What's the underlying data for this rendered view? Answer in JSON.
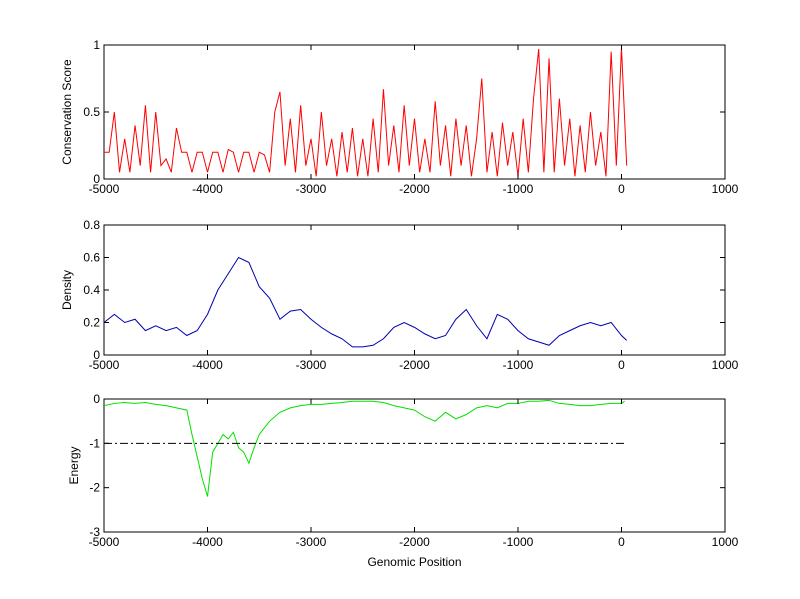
{
  "chart_data": [
    {
      "type": "line",
      "ylabel": "Conservation Score",
      "xlim": [
        -5000,
        1000
      ],
      "xticks": [
        -5000,
        -4000,
        -3000,
        -2000,
        -1000,
        0,
        1000
      ],
      "ylim": [
        0,
        1
      ],
      "yticks": [
        0,
        0.5,
        1
      ],
      "series": [
        {
          "color": "#ff0000",
          "x": [
            -5000,
            -4950,
            -4900,
            -4850,
            -4800,
            -4750,
            -4700,
            -4650,
            -4600,
            -4550,
            -4500,
            -4450,
            -4400,
            -4350,
            -4300,
            -4250,
            -4200,
            -4150,
            -4100,
            -4050,
            -4000,
            -3950,
            -3900,
            -3850,
            -3800,
            -3750,
            -3700,
            -3650,
            -3600,
            -3550,
            -3500,
            -3450,
            -3400,
            -3350,
            -3300,
            -3250,
            -3200,
            -3150,
            -3100,
            -3050,
            -3000,
            -2950,
            -2900,
            -2850,
            -2800,
            -2750,
            -2700,
            -2650,
            -2600,
            -2550,
            -2500,
            -2450,
            -2400,
            -2350,
            -2300,
            -2250,
            -2200,
            -2150,
            -2100,
            -2050,
            -2000,
            -1950,
            -1900,
            -1850,
            -1800,
            -1750,
            -1700,
            -1650,
            -1600,
            -1550,
            -1500,
            -1450,
            -1400,
            -1350,
            -1300,
            -1250,
            -1200,
            -1150,
            -1100,
            -1050,
            -1000,
            -950,
            -900,
            -850,
            -800,
            -750,
            -700,
            -650,
            -600,
            -550,
            -500,
            -450,
            -400,
            -350,
            -300,
            -250,
            -200,
            -150,
            -100,
            -50,
            0,
            50
          ],
          "values": [
            0.2,
            0.2,
            0.5,
            0.05,
            0.3,
            0.05,
            0.4,
            0.1,
            0.55,
            0.05,
            0.5,
            0.1,
            0.15,
            0.05,
            0.38,
            0.2,
            0.2,
            0.05,
            0.2,
            0.2,
            0.05,
            0.2,
            0.2,
            0.05,
            0.22,
            0.2,
            0.05,
            0.2,
            0.2,
            0.05,
            0.2,
            0.18,
            0.05,
            0.5,
            0.65,
            0.1,
            0.45,
            0.05,
            0.55,
            0.1,
            0.3,
            0.02,
            0.5,
            0.1,
            0.3,
            0.02,
            0.35,
            0.05,
            0.38,
            0.02,
            0.3,
            0.02,
            0.45,
            0.05,
            0.67,
            0.1,
            0.4,
            0.05,
            0.55,
            0.1,
            0.45,
            0.05,
            0.3,
            0.05,
            0.58,
            0.1,
            0.4,
            0.02,
            0.45,
            0.1,
            0.4,
            0.02,
            0.3,
            0.75,
            0.05,
            0.35,
            0.02,
            0.42,
            0.1,
            0.35,
            0.02,
            0.45,
            0.05,
            0.6,
            0.97,
            0.05,
            0.9,
            0.05,
            0.6,
            0.1,
            0.45,
            0.02,
            0.4,
            0.05,
            0.5,
            0.1,
            0.35,
            0.02,
            0.95,
            0.1,
            0.98,
            0.1
          ]
        }
      ]
    },
    {
      "type": "line",
      "ylabel": "Density",
      "xlim": [
        -5000,
        1000
      ],
      "xticks": [
        -5000,
        -4000,
        -3000,
        -2000,
        -1000,
        0,
        1000
      ],
      "ylim": [
        0,
        0.8
      ],
      "yticks": [
        0,
        0.2,
        0.4,
        0.6,
        0.8
      ],
      "series": [
        {
          "color": "#0000b0",
          "x": [
            -5000,
            -4900,
            -4800,
            -4700,
            -4600,
            -4500,
            -4400,
            -4300,
            -4200,
            -4100,
            -4000,
            -3900,
            -3800,
            -3700,
            -3600,
            -3500,
            -3400,
            -3300,
            -3200,
            -3100,
            -3000,
            -2900,
            -2800,
            -2700,
            -2600,
            -2500,
            -2400,
            -2300,
            -2200,
            -2100,
            -2000,
            -1900,
            -1800,
            -1700,
            -1600,
            -1500,
            -1400,
            -1300,
            -1200,
            -1100,
            -1000,
            -900,
            -800,
            -700,
            -600,
            -500,
            -400,
            -300,
            -200,
            -100,
            0,
            50
          ],
          "values": [
            0.2,
            0.25,
            0.2,
            0.22,
            0.15,
            0.18,
            0.15,
            0.17,
            0.12,
            0.15,
            0.25,
            0.4,
            0.5,
            0.6,
            0.57,
            0.42,
            0.35,
            0.22,
            0.27,
            0.28,
            0.22,
            0.17,
            0.13,
            0.1,
            0.05,
            0.05,
            0.06,
            0.1,
            0.17,
            0.2,
            0.17,
            0.13,
            0.1,
            0.12,
            0.22,
            0.28,
            0.18,
            0.1,
            0.25,
            0.22,
            0.15,
            0.1,
            0.08,
            0.06,
            0.12,
            0.15,
            0.18,
            0.2,
            0.18,
            0.2,
            0.12,
            0.09
          ]
        }
      ]
    },
    {
      "type": "line",
      "ylabel": "Energy",
      "xlabel": "Genomic Position",
      "xlim": [
        -5000,
        1000
      ],
      "xticks": [
        -5000,
        -4000,
        -3000,
        -2000,
        -1000,
        0,
        1000
      ],
      "ylim": [
        -3,
        0
      ],
      "yticks": [
        -3,
        -2,
        -1,
        0
      ],
      "series": [
        {
          "color": "#00e000",
          "x": [
            -5000,
            -4900,
            -4800,
            -4700,
            -4600,
            -4500,
            -4400,
            -4300,
            -4200,
            -4150,
            -4100,
            -4050,
            -4000,
            -3950,
            -3900,
            -3850,
            -3800,
            -3750,
            -3700,
            -3650,
            -3600,
            -3550,
            -3500,
            -3400,
            -3300,
            -3200,
            -3100,
            -3000,
            -2900,
            -2800,
            -2700,
            -2600,
            -2500,
            -2400,
            -2300,
            -2200,
            -2100,
            -2000,
            -1900,
            -1800,
            -1700,
            -1600,
            -1500,
            -1400,
            -1300,
            -1200,
            -1100,
            -1000,
            -900,
            -800,
            -700,
            -600,
            -500,
            -400,
            -300,
            -200,
            -100,
            0,
            30
          ],
          "values": [
            -0.15,
            -0.1,
            -0.08,
            -0.1,
            -0.08,
            -0.12,
            -0.15,
            -0.2,
            -0.25,
            -0.8,
            -1.3,
            -1.8,
            -2.2,
            -1.2,
            -1.0,
            -0.8,
            -0.9,
            -0.75,
            -1.1,
            -1.2,
            -1.45,
            -1.1,
            -0.8,
            -0.5,
            -0.3,
            -0.2,
            -0.15,
            -0.12,
            -0.12,
            -0.1,
            -0.08,
            -0.05,
            -0.05,
            -0.05,
            -0.08,
            -0.15,
            -0.2,
            -0.25,
            -0.4,
            -0.5,
            -0.3,
            -0.45,
            -0.35,
            -0.2,
            -0.15,
            -0.2,
            -0.1,
            -0.1,
            -0.05,
            -0.05,
            -0.03,
            -0.1,
            -0.12,
            -0.15,
            -0.15,
            -0.12,
            -0.1,
            -0.1,
            -0.05
          ]
        },
        {
          "color": "#000000",
          "linestyle": "-.",
          "x": [
            -5000,
            30
          ],
          "values": [
            -1,
            -1
          ]
        }
      ]
    }
  ]
}
